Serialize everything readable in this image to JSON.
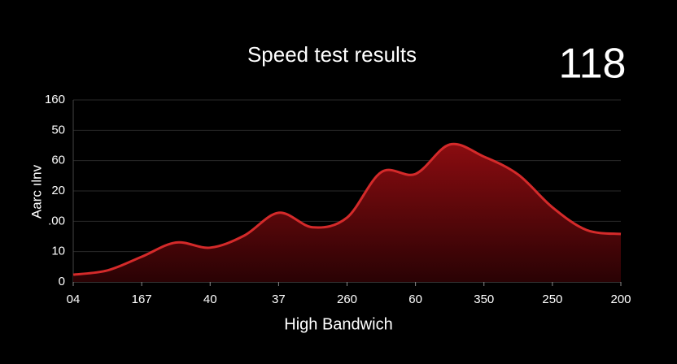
{
  "chart_data": {
    "type": "area",
    "title": "Speed test results",
    "headline": "118",
    "x_label": "High Bandwich",
    "y_label": "Aarc ılnv",
    "x": [
      0,
      0.5,
      1,
      1.5,
      2,
      2.5,
      3,
      3.5,
      4,
      4.5,
      5,
      5.5,
      6,
      6.5,
      7,
      7.5,
      8
    ],
    "series": [
      {
        "color": "#d42a2a",
        "values": [
          2.4,
          3.8,
          8.3,
          13,
          11.3,
          15.3,
          22.8,
          18,
          21.2,
          36.2,
          35.6,
          45.3,
          41.3,
          35.4,
          24.6,
          17.1,
          15.8
        ]
      }
    ],
    "xlim": [
      0,
      8
    ],
    "xticks": [
      {
        "value": 0,
        "label": "04"
      },
      {
        "value": 1,
        "label": "167"
      },
      {
        "value": 2,
        "label": "40"
      },
      {
        "value": 3,
        "label": "37"
      },
      {
        "value": 4,
        "label": "260"
      },
      {
        "value": 5,
        "label": "60"
      },
      {
        "value": 6,
        "label": "350"
      },
      {
        "value": 7,
        "label": "250"
      },
      {
        "value": 8,
        "label": "200"
      }
    ],
    "ylim": [
      0,
      60
    ],
    "yticks": [
      0,
      10,
      {
        "value": 20,
        "label": ".00"
      },
      {
        "value": 30,
        "label": "20"
      },
      {
        "value": 40,
        "label": "60"
      },
      50,
      {
        "value": 60,
        "label": "160"
      }
    ],
    "grid": true
  }
}
